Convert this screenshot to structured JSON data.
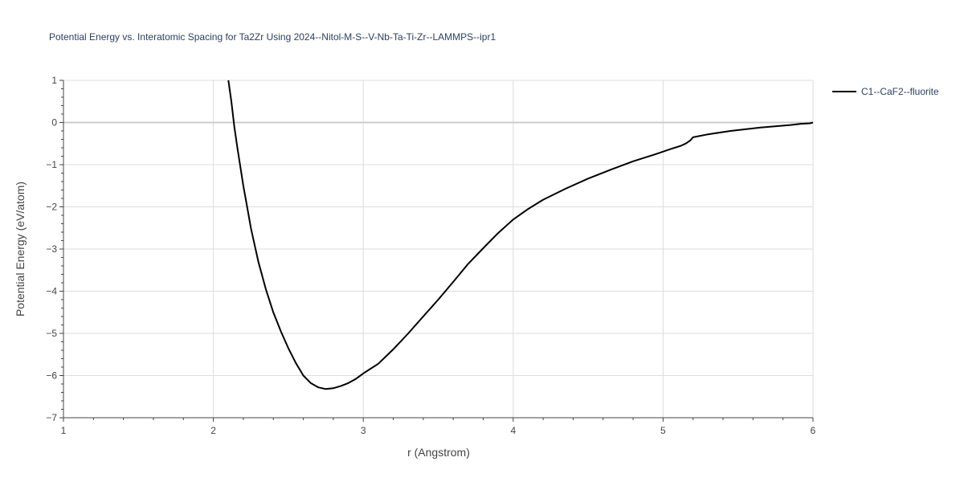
{
  "chart_data": {
    "type": "line",
    "title": "Potential Energy vs. Interatomic Spacing for Ta2Zr Using 2024--Nitol-M-S--V-Nb-Ta-Ti-Zr--LAMMPS--ipr1",
    "xlabel": "r (Angstrom)",
    "ylabel": "Potential Energy (eV/atom)",
    "xlim": [
      1,
      6
    ],
    "ylim": [
      -7,
      1
    ],
    "xticks": [
      1,
      2,
      3,
      4,
      5,
      6
    ],
    "yticks": [
      -7,
      -6,
      -5,
      -4,
      -3,
      -2,
      -1,
      0,
      1
    ],
    "xtick_labels": [
      "1",
      "2",
      "3",
      "4",
      "5",
      "6"
    ],
    "ytick_labels": [
      "−7",
      "−6",
      "−5",
      "−4",
      "−3",
      "−2",
      "−1",
      "0",
      "1"
    ],
    "grid": true,
    "legend_position": "top-right",
    "colors": {
      "line": "#000000",
      "grid": "#dddddd",
      "zero_line": "#cccccc",
      "text": "#444444"
    },
    "series": [
      {
        "name": "C1--CaF2--fluorite",
        "x": [
          2.1,
          2.12,
          2.14,
          2.16,
          2.18,
          2.2,
          2.22,
          2.25,
          2.3,
          2.35,
          2.4,
          2.45,
          2.5,
          2.55,
          2.6,
          2.65,
          2.7,
          2.75,
          2.8,
          2.85,
          2.9,
          2.95,
          3.0,
          3.1,
          3.2,
          3.3,
          3.4,
          3.5,
          3.6,
          3.7,
          3.8,
          3.9,
          4.0,
          4.1,
          4.2,
          4.35,
          4.5,
          4.65,
          4.8,
          4.95,
          5.05,
          5.12,
          5.15,
          5.18,
          5.2,
          5.3,
          5.45,
          5.65,
          5.85,
          5.92,
          5.98,
          6.0
        ],
        "y": [
          1.0,
          0.5,
          -0.1,
          -0.6,
          -1.05,
          -1.5,
          -1.9,
          -2.5,
          -3.3,
          -3.95,
          -4.5,
          -4.95,
          -5.35,
          -5.7,
          -6.0,
          -6.18,
          -6.28,
          -6.32,
          -6.3,
          -6.25,
          -6.18,
          -6.08,
          -5.95,
          -5.72,
          -5.38,
          -5.0,
          -4.6,
          -4.2,
          -3.78,
          -3.35,
          -2.98,
          -2.62,
          -2.3,
          -2.05,
          -1.83,
          -1.57,
          -1.33,
          -1.12,
          -0.92,
          -0.75,
          -0.63,
          -0.55,
          -0.5,
          -0.43,
          -0.35,
          -0.28,
          -0.2,
          -0.12,
          -0.06,
          -0.03,
          -0.02,
          0.0
        ]
      }
    ]
  }
}
